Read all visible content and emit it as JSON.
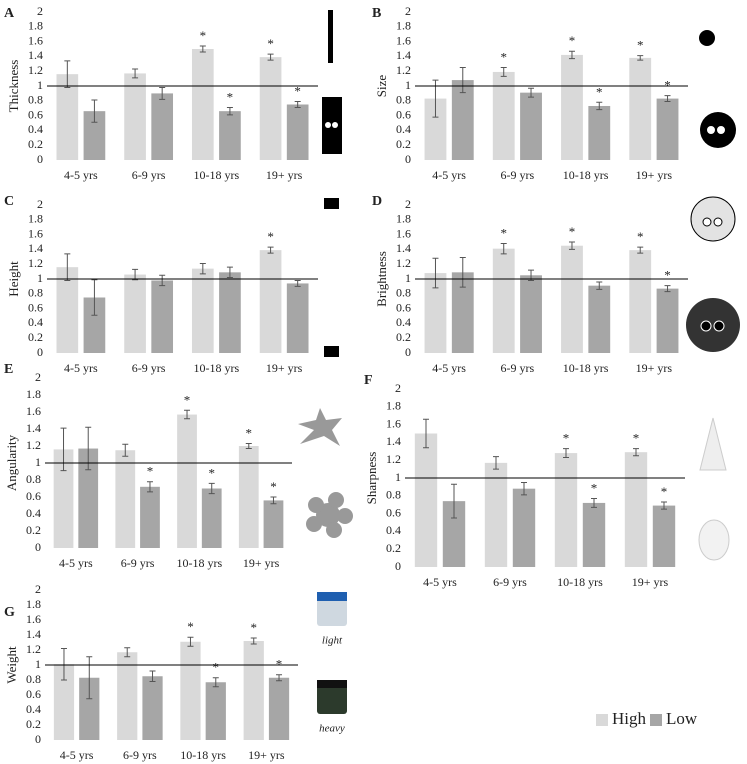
{
  "chart_data": [
    {
      "type": "bar",
      "panel": "A",
      "ylabel": "Thickness",
      "categories": [
        "4-5 yrs",
        "6-9 yrs",
        "10-18 yrs",
        "19+ yrs"
      ],
      "series": [
        {
          "name": "High",
          "color": "#d9d9d9",
          "values": [
            1.16,
            1.17,
            1.5,
            1.39
          ],
          "errors": [
            0.18,
            0.06,
            0.04,
            0.04
          ],
          "significance": [
            null,
            null,
            "*",
            "*"
          ]
        },
        {
          "name": "Low",
          "color": "#a6a6a6",
          "values": [
            0.66,
            0.9,
            0.66,
            0.75
          ],
          "errors": [
            0.15,
            0.08,
            0.05,
            0.04
          ],
          "significance": [
            null,
            null,
            "*",
            "*"
          ]
        }
      ],
      "reference_line": 1,
      "ylim": [
        0,
        2
      ],
      "yticks": [
        0,
        0.2,
        0.4,
        0.6,
        0.8,
        1,
        1.2,
        1.4,
        1.6,
        1.8,
        2
      ]
    },
    {
      "type": "bar",
      "panel": "B",
      "ylabel": "Size",
      "categories": [
        "4-5 yrs",
        "6-9 yrs",
        "10-18 yrs",
        "19+ yrs"
      ],
      "series": [
        {
          "name": "High",
          "color": "#d9d9d9",
          "values": [
            0.83,
            1.19,
            1.42,
            1.38
          ],
          "errors": [
            0.25,
            0.06,
            0.05,
            0.03
          ],
          "significance": [
            null,
            "*",
            "*",
            "*"
          ]
        },
        {
          "name": "Low",
          "color": "#a6a6a6",
          "values": [
            1.08,
            0.91,
            0.73,
            0.83
          ],
          "errors": [
            0.17,
            0.06,
            0.05,
            0.04
          ],
          "significance": [
            null,
            null,
            "*",
            "*"
          ]
        }
      ],
      "reference_line": 1,
      "ylim": [
        0,
        2
      ],
      "yticks": [
        0,
        0.2,
        0.4,
        0.6,
        0.8,
        1,
        1.2,
        1.4,
        1.6,
        1.8,
        2
      ]
    },
    {
      "type": "bar",
      "panel": "C",
      "ylabel": "Height",
      "categories": [
        "4-5 yrs",
        "6-9 yrs",
        "10-18 yrs",
        "19+ yrs"
      ],
      "series": [
        {
          "name": "High",
          "color": "#d9d9d9",
          "values": [
            1.16,
            1.06,
            1.14,
            1.39
          ],
          "errors": [
            0.18,
            0.07,
            0.07,
            0.04
          ],
          "significance": [
            null,
            null,
            null,
            "*"
          ]
        },
        {
          "name": "Low",
          "color": "#a6a6a6",
          "values": [
            0.75,
            0.98,
            1.09,
            0.94
          ],
          "errors": [
            0.24,
            0.07,
            0.07,
            0.04
          ],
          "significance": [
            null,
            null,
            null,
            null
          ]
        }
      ],
      "reference_line": 1,
      "ylim": [
        0,
        2
      ],
      "yticks": [
        0,
        0.2,
        0.4,
        0.6,
        0.8,
        1,
        1.2,
        1.4,
        1.6,
        1.8,
        2
      ]
    },
    {
      "type": "bar",
      "panel": "D",
      "ylabel": "Brightness",
      "categories": [
        "4-5 yrs",
        "6-9 yrs",
        "10-18 yrs",
        "19+ yrs"
      ],
      "series": [
        {
          "name": "High",
          "color": "#d9d9d9",
          "values": [
            1.08,
            1.41,
            1.45,
            1.39
          ],
          "errors": [
            0.2,
            0.07,
            0.05,
            0.04
          ],
          "significance": [
            null,
            "*",
            "*",
            "*"
          ]
        },
        {
          "name": "Low",
          "color": "#a6a6a6",
          "values": [
            1.09,
            1.05,
            0.91,
            0.87
          ],
          "errors": [
            0.2,
            0.07,
            0.05,
            0.04
          ],
          "significance": [
            null,
            null,
            null,
            "*"
          ]
        }
      ],
      "reference_line": 1,
      "ylim": [
        0,
        2
      ],
      "yticks": [
        0,
        0.2,
        0.4,
        0.6,
        0.8,
        1,
        1.2,
        1.4,
        1.6,
        1.8,
        2
      ]
    },
    {
      "type": "bar",
      "panel": "E",
      "ylabel": "Angularity",
      "categories": [
        "4-5 yrs",
        "6-9 yrs",
        "10-18 yrs",
        "19+ yrs"
      ],
      "series": [
        {
          "name": "High",
          "color": "#d9d9d9",
          "values": [
            1.16,
            1.15,
            1.57,
            1.2
          ],
          "errors": [
            0.25,
            0.07,
            0.05,
            0.03
          ],
          "significance": [
            null,
            null,
            "*",
            "*"
          ]
        },
        {
          "name": "Low",
          "color": "#a6a6a6",
          "values": [
            1.17,
            0.72,
            0.7,
            0.56
          ],
          "errors": [
            0.25,
            0.06,
            0.06,
            0.04
          ],
          "significance": [
            null,
            "*",
            "*",
            "*"
          ]
        }
      ],
      "reference_line": 1,
      "ylim": [
        0,
        2
      ],
      "yticks": [
        0,
        0.2,
        0.4,
        0.6,
        0.8,
        1,
        1.2,
        1.4,
        1.6,
        1.8,
        2
      ]
    },
    {
      "type": "bar",
      "panel": "F",
      "ylabel": "Sharpness",
      "categories": [
        "4-5 yrs",
        "6-9 yrs",
        "10-18 yrs",
        "19+ yrs"
      ],
      "series": [
        {
          "name": "High",
          "color": "#d9d9d9",
          "values": [
            1.5,
            1.17,
            1.28,
            1.29
          ],
          "errors": [
            0.16,
            0.07,
            0.05,
            0.04
          ],
          "significance": [
            null,
            null,
            "*",
            "*"
          ]
        },
        {
          "name": "Low",
          "color": "#a6a6a6",
          "values": [
            0.74,
            0.88,
            0.72,
            0.69
          ],
          "errors": [
            0.19,
            0.07,
            0.05,
            0.04
          ],
          "significance": [
            null,
            null,
            "*",
            "*"
          ]
        }
      ],
      "reference_line": 1,
      "ylim": [
        0,
        2
      ],
      "yticks": [
        0,
        0.2,
        0.4,
        0.6,
        0.8,
        1,
        1.2,
        1.4,
        1.6,
        1.8,
        2
      ]
    },
    {
      "type": "bar",
      "panel": "G",
      "ylabel": "Weight",
      "categories": [
        "4-5 yrs",
        "6-9 yrs",
        "10-18 yrs",
        "19+ yrs"
      ],
      "series": [
        {
          "name": "High",
          "color": "#d9d9d9",
          "values": [
            1.01,
            1.17,
            1.31,
            1.32
          ],
          "errors": [
            0.21,
            0.06,
            0.06,
            0.04
          ],
          "significance": [
            null,
            null,
            "*",
            "*"
          ]
        },
        {
          "name": "Low",
          "color": "#a6a6a6",
          "values": [
            0.83,
            0.85,
            0.77,
            0.83
          ],
          "errors": [
            0.28,
            0.07,
            0.06,
            0.04
          ],
          "significance": [
            null,
            null,
            "*",
            "*"
          ]
        }
      ],
      "reference_line": 1,
      "ylim": [
        0,
        2
      ],
      "yticks": [
        0,
        0.2,
        0.4,
        0.6,
        0.8,
        1,
        1.2,
        1.4,
        1.6,
        1.8,
        2
      ],
      "image_captions": [
        "light",
        "heavy"
      ],
      "legend": "bottom-right"
    }
  ]
}
